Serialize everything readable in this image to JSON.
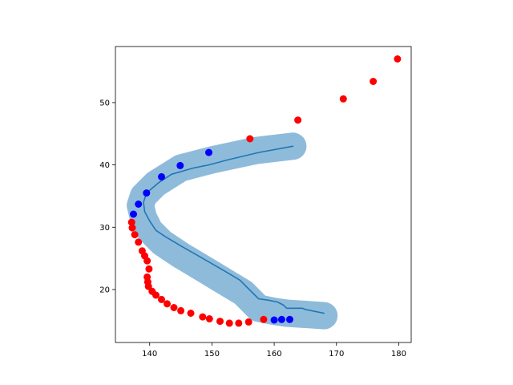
{
  "chart_data": {
    "type": "scatter",
    "title": "",
    "xlabel": "",
    "ylabel": "",
    "xlim": [
      134.5,
      182
    ],
    "ylim": [
      11.5,
      59
    ],
    "xticks": [
      140,
      150,
      160,
      170,
      180
    ],
    "yticks": [
      20,
      30,
      40,
      50
    ],
    "grid": false,
    "colors": {
      "band": "#8fbbdb",
      "line": "#1f77b4",
      "red_points": "#ff0000",
      "blue_points": "#0000ff",
      "axes": "#000000"
    },
    "series": [
      {
        "kind": "band",
        "color_key": "band",
        "x": [
          163,
          157,
          150,
          145,
          141,
          139,
          138.5,
          139,
          140,
          142,
          145,
          150,
          155,
          157.5,
          160,
          162,
          165,
          168
        ],
        "y": [
          43,
          42.3,
          40.8,
          39.5,
          37,
          35,
          33.5,
          31.5,
          29.5,
          27.5,
          25.5,
          22.5,
          19.5,
          17,
          16.5,
          16.2,
          16,
          15.8
        ]
      },
      {
        "kind": "line",
        "color_key": "line",
        "x": [
          163,
          157.5,
          152.5,
          149.5,
          147,
          143.5,
          141.5,
          139.5,
          139,
          139.2,
          140,
          141,
          142.5,
          145,
          148.5,
          152,
          154.5,
          156,
          157.5,
          159,
          160.5,
          161.5,
          162,
          164.5,
          165,
          166.5,
          168
        ],
        "y": [
          43,
          42,
          40.8,
          40,
          39.5,
          38.5,
          37.2,
          35.5,
          34,
          32.5,
          31,
          29.5,
          28.5,
          27,
          25,
          23,
          21.5,
          20,
          18.5,
          18.3,
          18,
          17.5,
          17,
          17,
          16.8,
          16.5,
          16.2
        ]
      },
      {
        "kind": "points",
        "color_key": "red_points",
        "x": [
          179.8,
          175.9,
          171.1,
          163.8,
          156.1,
          137.1,
          137.2,
          137.6,
          138.2,
          138.8,
          139.2,
          139.6,
          139.9,
          139.6,
          139.7,
          139.8,
          140.4,
          141,
          141.9,
          142.8,
          143.9,
          145,
          146.6,
          148.5,
          149.6,
          151.3,
          152.8,
          154.3,
          155.9,
          158.3
        ],
        "y": [
          57,
          53.4,
          50.6,
          47.2,
          44.2,
          30.8,
          29.9,
          28.8,
          27.6,
          26.2,
          25.4,
          24.6,
          23.3,
          22,
          21.2,
          20.5,
          19.7,
          19.1,
          18.4,
          17.7,
          17.1,
          16.6,
          16.2,
          15.6,
          15.3,
          14.9,
          14.6,
          14.6,
          14.8,
          15.2
        ]
      },
      {
        "kind": "points",
        "color_key": "blue_points",
        "x": [
          149.5,
          144.9,
          141.9,
          139.5,
          138.2,
          137.4,
          160,
          161.2,
          162.5
        ],
        "y": [
          42,
          39.9,
          38.1,
          35.5,
          33.7,
          32.1,
          15.1,
          15.2,
          15.2
        ]
      }
    ]
  }
}
